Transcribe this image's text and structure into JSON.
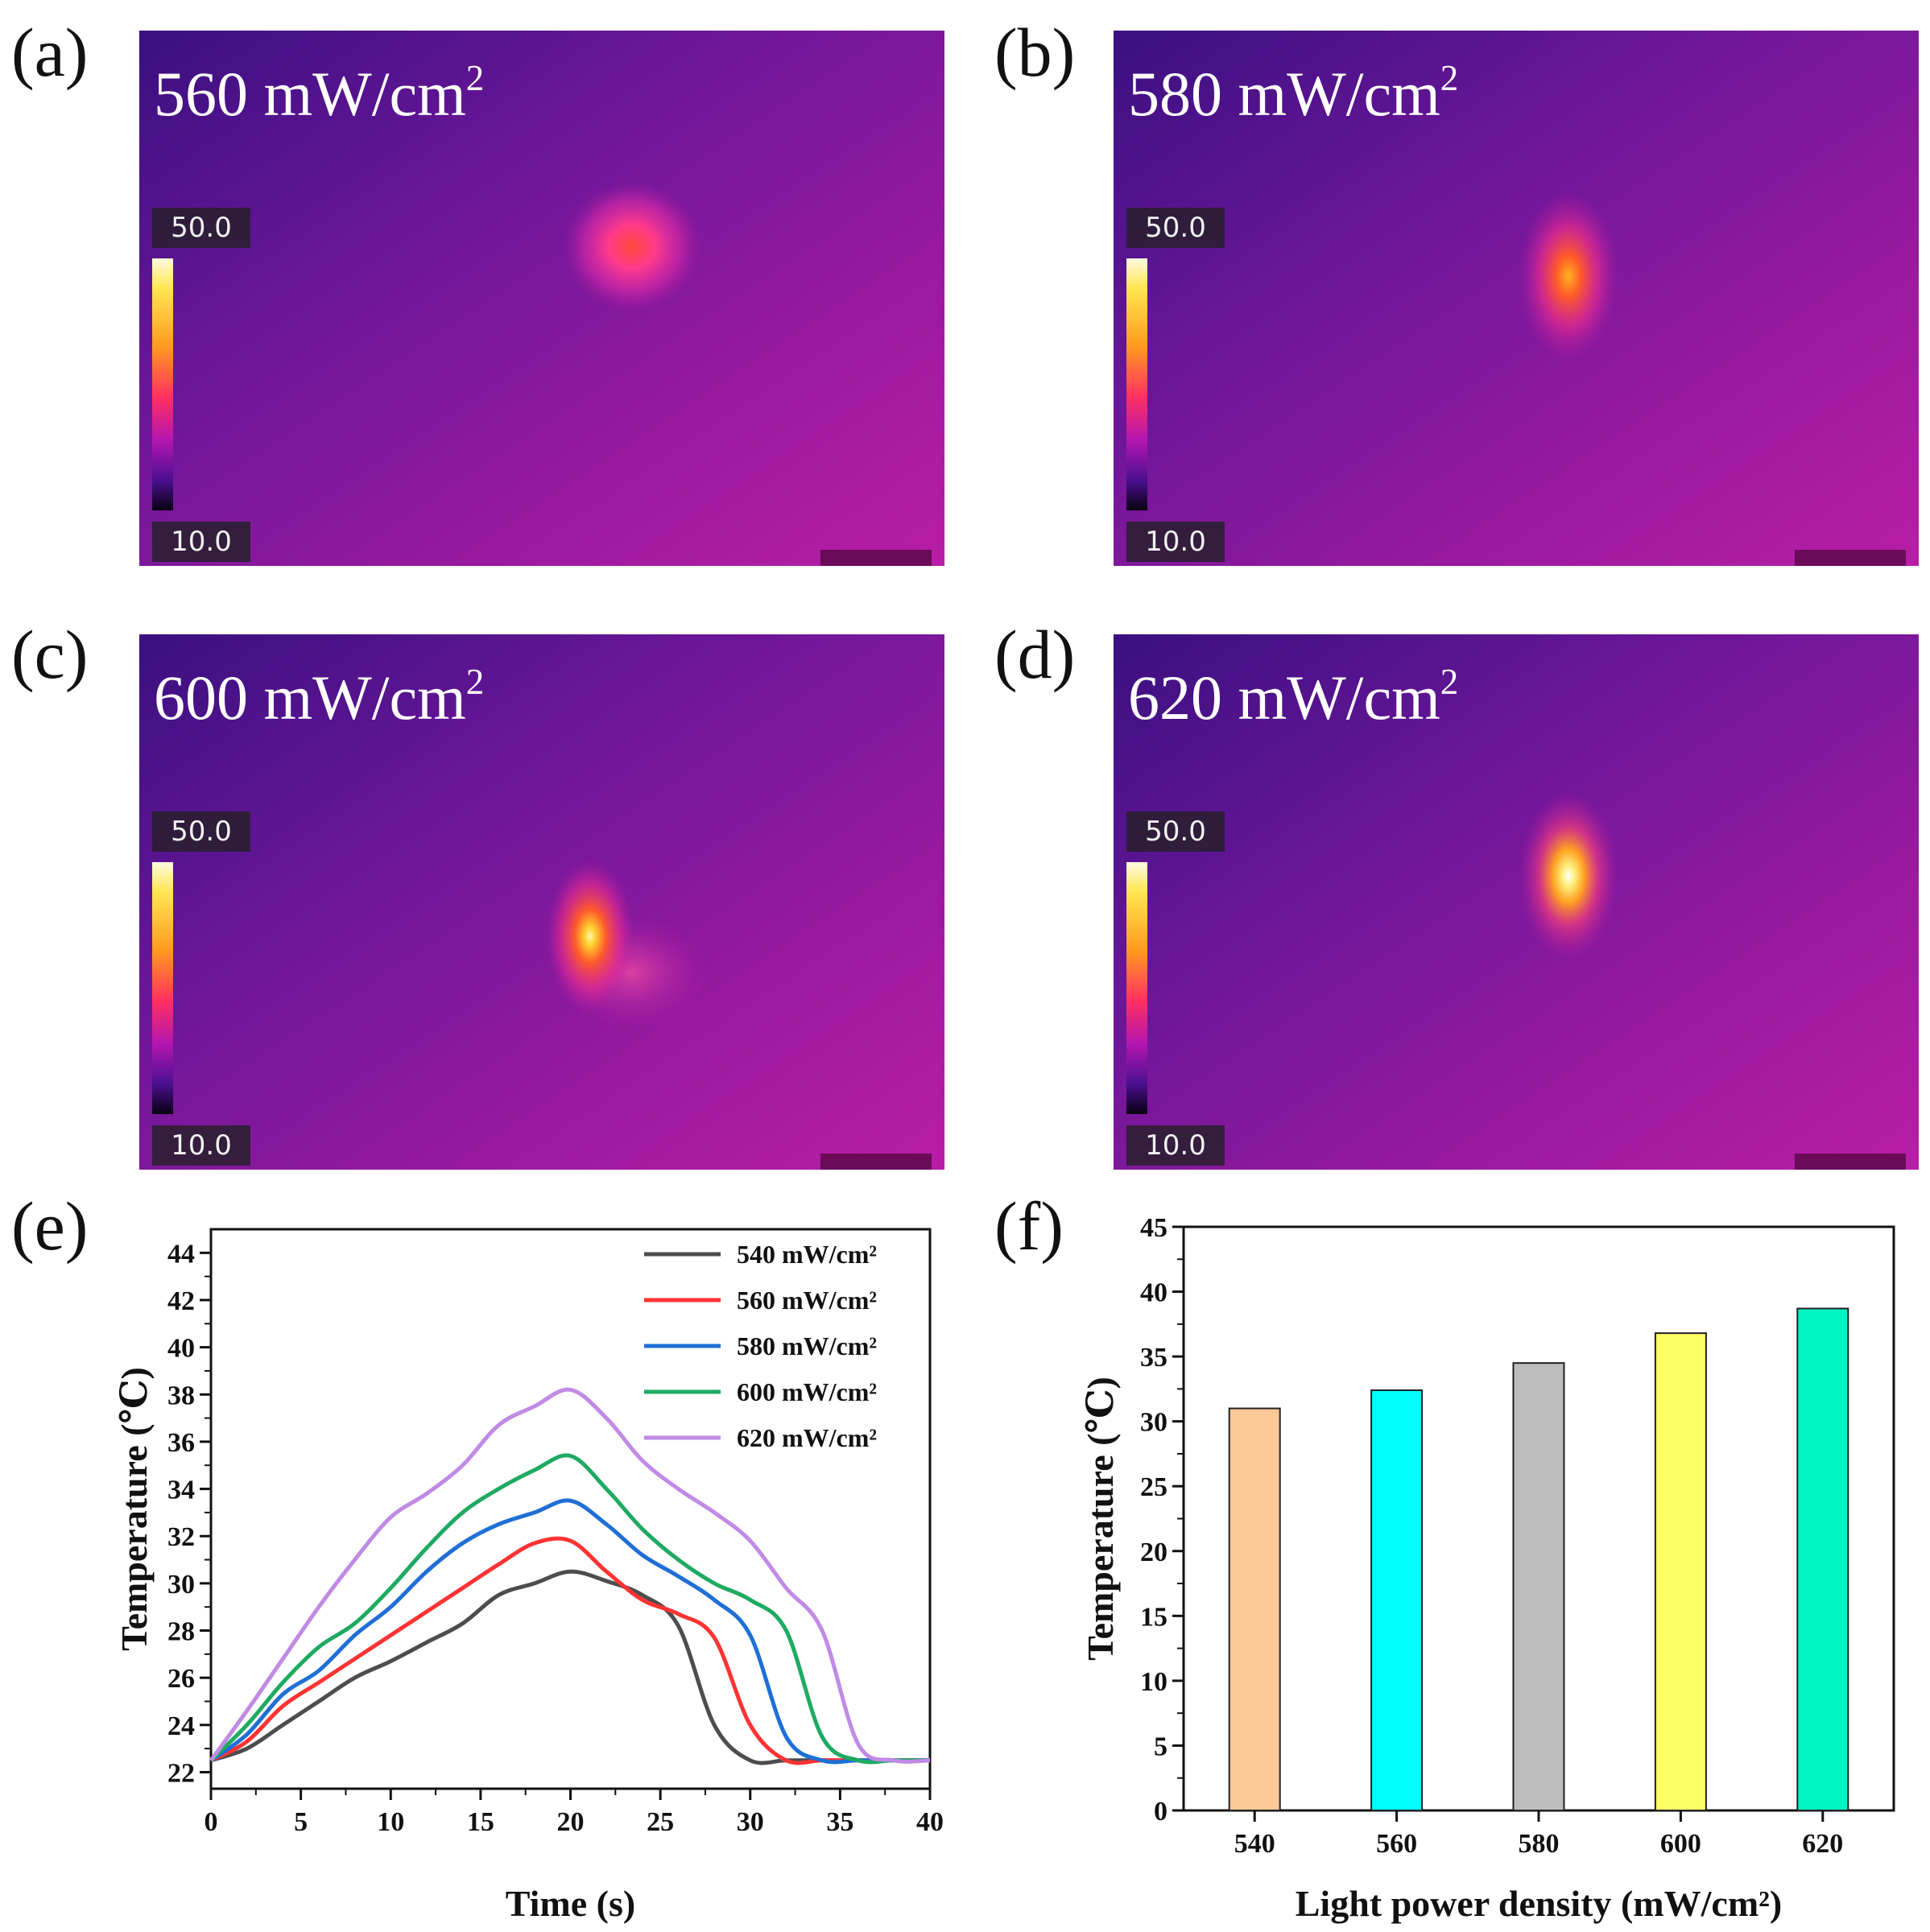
{
  "panels": [
    {
      "id": "a",
      "label": "(a)",
      "power_value": "560 mW/cm",
      "power_exp": "2",
      "scale_max": "50.0",
      "scale_min": "10.0"
    },
    {
      "id": "b",
      "label": "(b)",
      "power_value": "580 mW/cm",
      "power_exp": "2",
      "scale_max": "50.0",
      "scale_min": "10.0"
    },
    {
      "id": "c",
      "label": "(c)",
      "power_value": "600 mW/cm",
      "power_exp": "2",
      "scale_max": "50.0",
      "scale_min": "10.0"
    },
    {
      "id": "d",
      "label": "(d)",
      "power_value": "620 mW/cm",
      "power_exp": "2",
      "scale_max": "50.0",
      "scale_min": "10.0"
    }
  ],
  "label_e": "(e)",
  "label_f": "(f)",
  "chart_data": [
    {
      "type": "line",
      "xlabel": "Time (s)",
      "ylabel": "Temperature (℃)",
      "xlim": [
        0,
        40
      ],
      "ylim": [
        21.3,
        45
      ],
      "xticks": [
        0,
        5,
        10,
        15,
        20,
        25,
        30,
        35,
        40
      ],
      "yticks": [
        22,
        24,
        26,
        28,
        30,
        32,
        34,
        36,
        38,
        40,
        42,
        44
      ],
      "legend_position": "top-right",
      "x": [
        0,
        2,
        4,
        6,
        8,
        10,
        12,
        14,
        16,
        18,
        20,
        22,
        24,
        26,
        28,
        30,
        32,
        34,
        36,
        38,
        40
      ],
      "series": [
        {
          "name": "540 mW/cm²",
          "color": "#4d4d4d",
          "values": [
            22.5,
            23.0,
            24.0,
            25.0,
            26.0,
            26.7,
            27.5,
            28.3,
            29.5,
            30.0,
            30.5,
            30.1,
            29.5,
            28.2,
            24.0,
            22.5,
            22.5,
            22.5,
            22.5,
            22.5,
            22.5
          ]
        },
        {
          "name": "560 mW/cm²",
          "color": "#ff3333",
          "values": [
            22.5,
            23.3,
            24.8,
            25.8,
            26.8,
            27.8,
            28.8,
            29.8,
            30.8,
            31.7,
            31.8,
            30.5,
            29.3,
            28.7,
            27.7,
            24.0,
            22.5,
            22.5,
            22.5,
            22.5,
            22.5
          ]
        },
        {
          "name": "580 mW/cm²",
          "color": "#1f6fd6",
          "values": [
            22.5,
            23.6,
            25.3,
            26.3,
            27.8,
            29.0,
            30.5,
            31.7,
            32.5,
            33.0,
            33.5,
            32.5,
            31.2,
            30.3,
            29.3,
            27.8,
            23.5,
            22.5,
            22.5,
            22.5,
            22.5
          ]
        },
        {
          "name": "600 mW/cm²",
          "color": "#1faa62",
          "values": [
            22.5,
            24.0,
            25.8,
            27.3,
            28.3,
            29.8,
            31.5,
            33.0,
            34.0,
            34.8,
            35.4,
            34.0,
            32.3,
            31.0,
            30.0,
            29.3,
            28.0,
            23.5,
            22.5,
            22.5,
            22.5
          ]
        },
        {
          "name": "620 mW/cm²",
          "color": "#c18ae5",
          "values": [
            22.5,
            24.6,
            26.8,
            29.0,
            31.0,
            32.8,
            33.8,
            35.0,
            36.7,
            37.5,
            38.2,
            37.0,
            35.2,
            34.0,
            33.0,
            31.8,
            29.8,
            28.0,
            23.2,
            22.5,
            22.5
          ]
        }
      ]
    },
    {
      "type": "bar",
      "xlabel": "Light power density (mW/cm²)",
      "ylabel": "Temperature (℃)",
      "ylim": [
        0,
        45
      ],
      "yticks": [
        0,
        5,
        10,
        15,
        20,
        25,
        30,
        35,
        40,
        45
      ],
      "categories": [
        "540",
        "560",
        "580",
        "600",
        "620"
      ],
      "values": [
        31.0,
        32.4,
        34.5,
        36.8,
        38.7
      ],
      "colors": [
        "#fcc896",
        "#00ffff",
        "#bdbdbd",
        "#ffff66",
        "#00f5c4"
      ]
    }
  ]
}
